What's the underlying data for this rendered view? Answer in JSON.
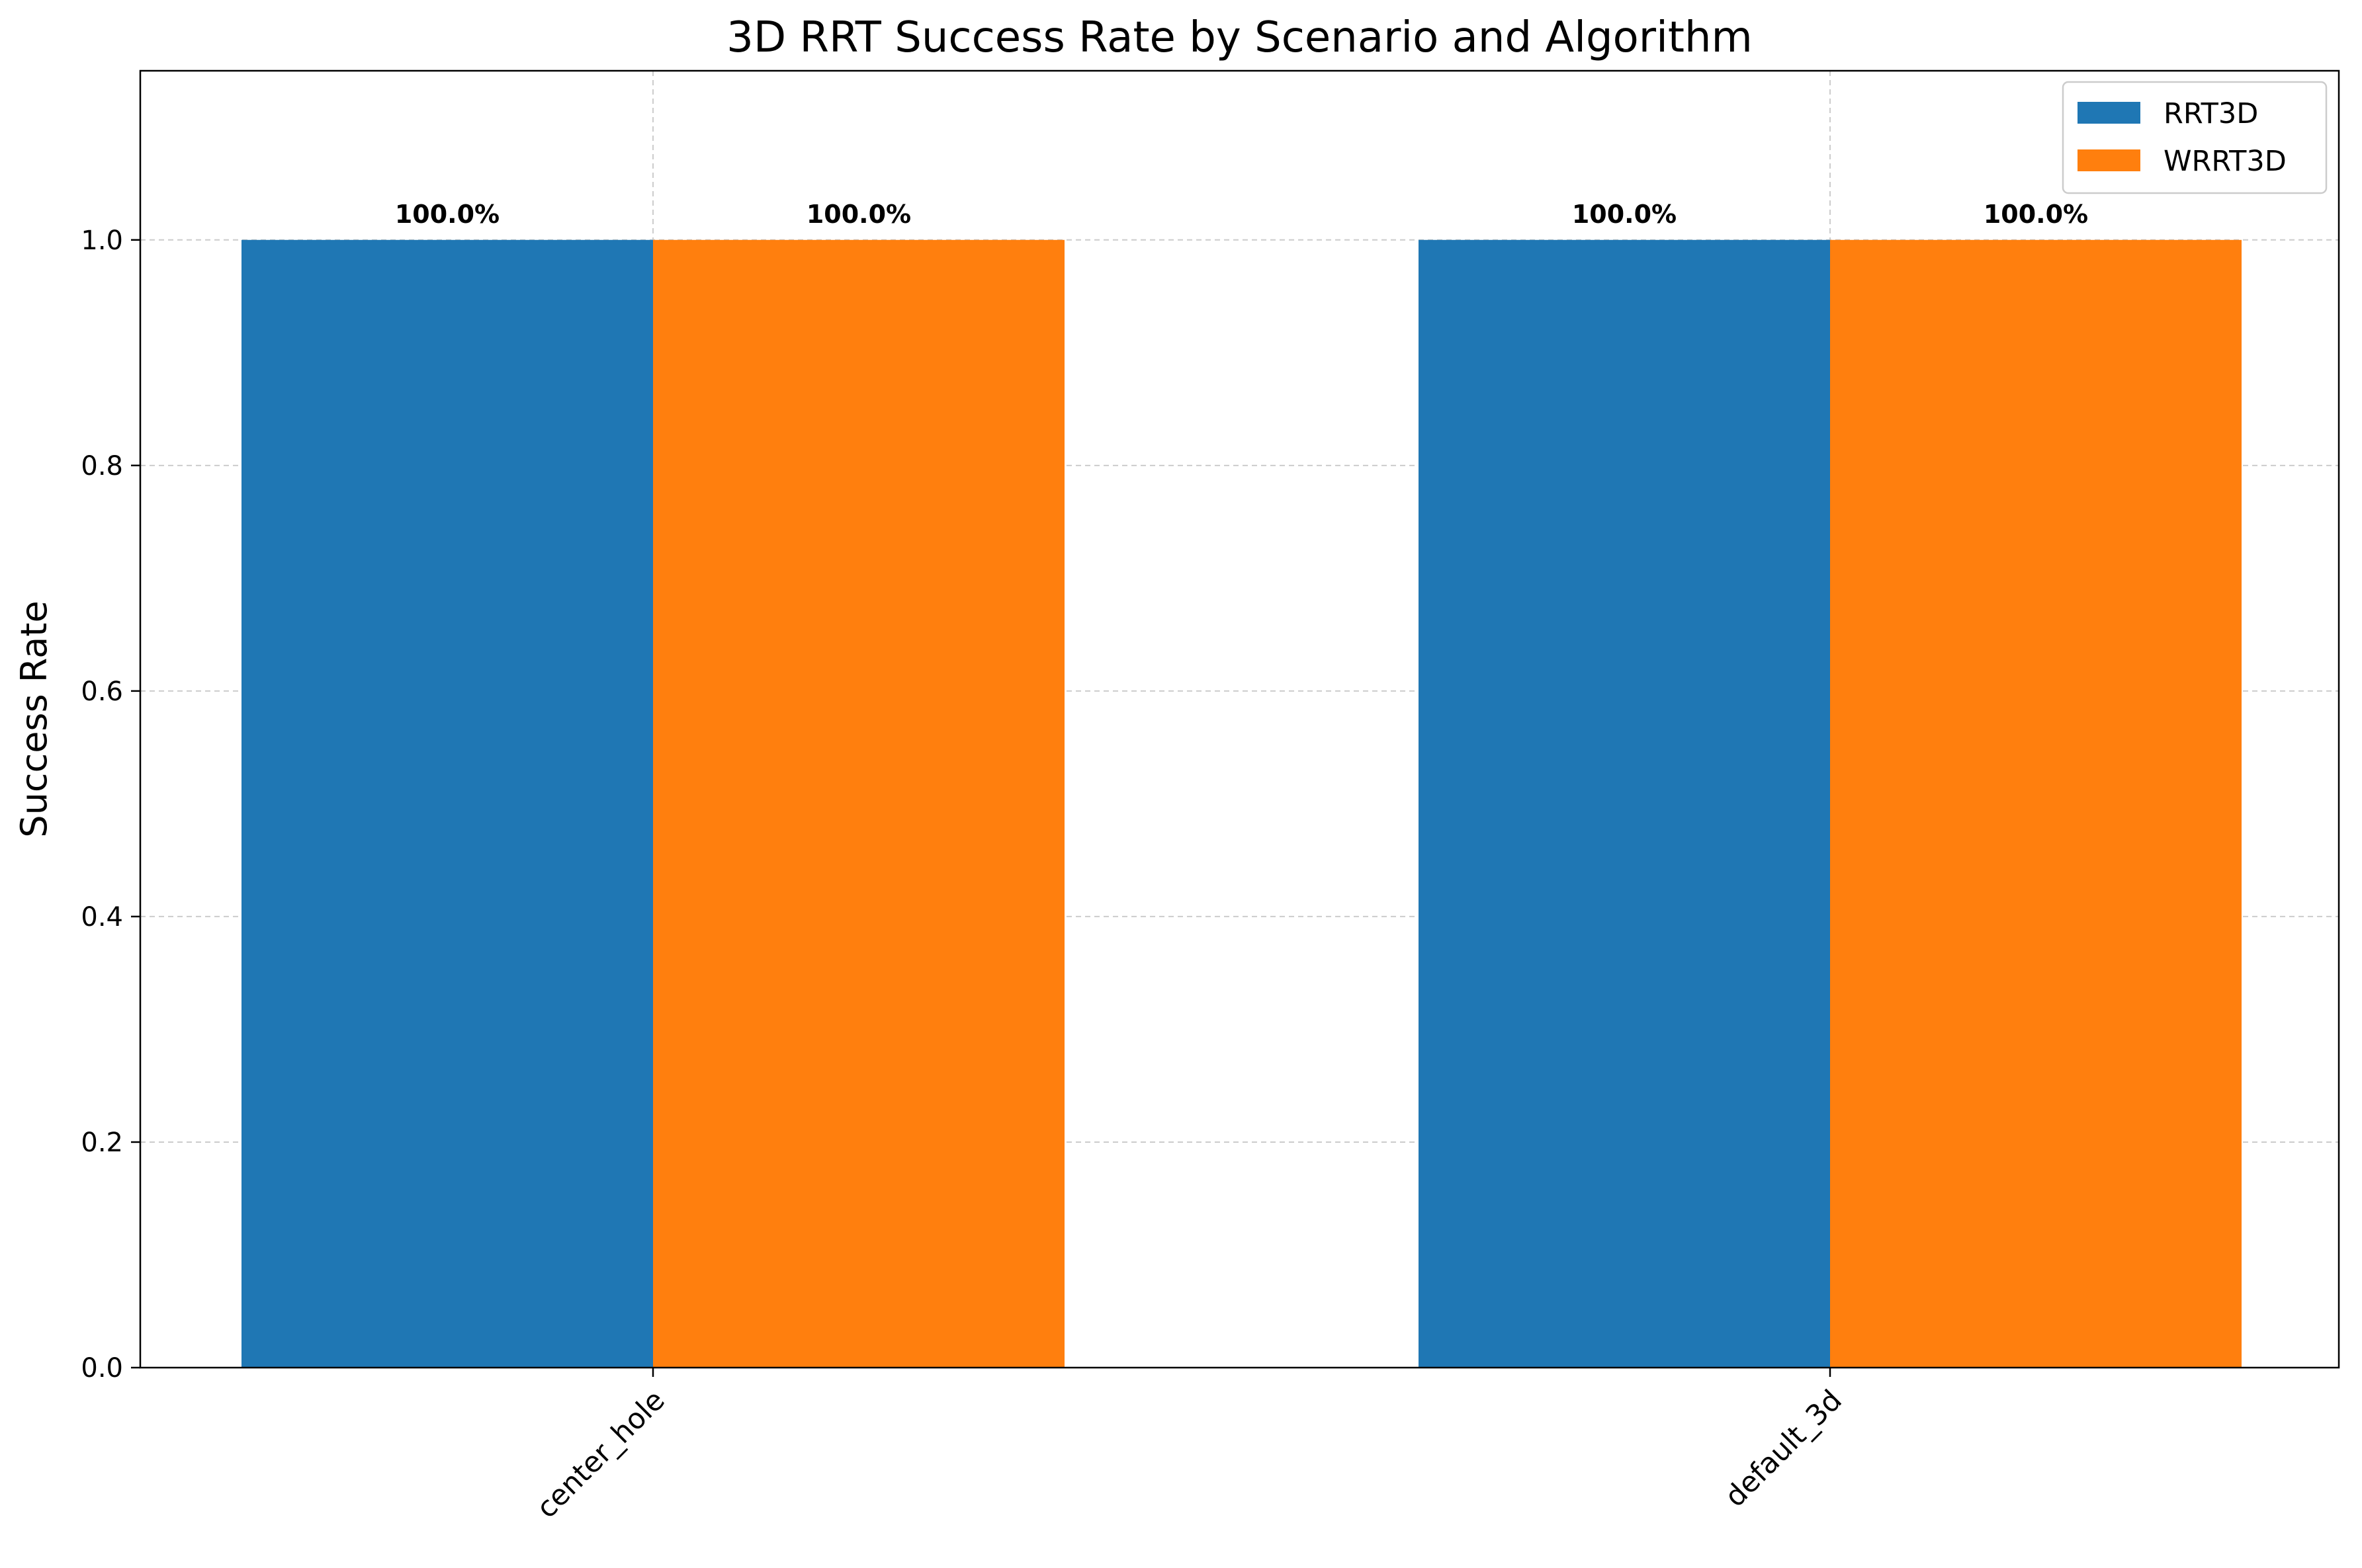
{
  "chart_data": {
    "type": "bar",
    "title": "3D RRT Success Rate by Scenario and Algorithm",
    "xlabel": "",
    "ylabel": "Success Rate",
    "categories": [
      "center_hole",
      "default_3d"
    ],
    "series": [
      {
        "name": "RRT3D",
        "values": [
          1.0,
          1.0
        ],
        "color": "#1f77b4",
        "labels": [
          "100.0%",
          "100.0%"
        ]
      },
      {
        "name": "WRRT3D",
        "values": [
          1.0,
          1.0
        ],
        "color": "#ff7f0e",
        "labels": [
          "100.0%",
          "100.0%"
        ]
      }
    ],
    "ylim": [
      0,
      1.15
    ],
    "yticks": [
      0.0,
      0.2,
      0.4,
      0.6,
      0.8,
      1.0
    ],
    "ytick_labels": [
      "0.0",
      "0.2",
      "0.4",
      "0.6",
      "0.8",
      "1.0"
    ],
    "grid": true,
    "legend_position": "top-right"
  }
}
